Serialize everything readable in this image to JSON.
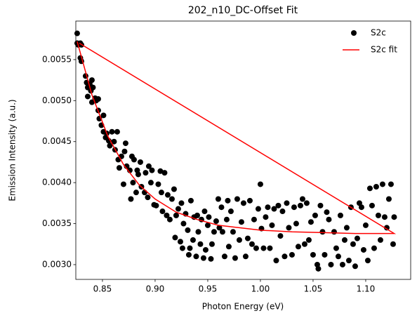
{
  "chart_data": {
    "type": "scatter",
    "title": "202_n10_DC-Offset Fit",
    "xlabel": "Photon Energy (eV)",
    "ylabel": "Emission Intensity (a.u.)",
    "xlim": [
      0.8247,
      1.1427
    ],
    "ylim": [
      0.00282,
      0.00597
    ],
    "xticks": [
      {
        "value": 0.85,
        "label": "0.85"
      },
      {
        "value": 0.9,
        "label": "0.90"
      },
      0.95,
      {
        "value": 1.0,
        "label": "1.00"
      },
      1.05,
      {
        "value": 1.1,
        "label": "1.10"
      }
    ],
    "yticks": [
      {
        "value": 0.003,
        "label": "0.0030"
      },
      0.0035,
      {
        "value": 0.004,
        "label": "0.0040"
      },
      0.0045,
      {
        "value": 0.005,
        "label": "0.0050"
      },
      0.0055
    ],
    "legend": "upper right",
    "series": [
      {
        "name": "S2c",
        "type": "scatter",
        "color": "#000000",
        "x": [
          0.826,
          0.826,
          0.827,
          0.829,
          0.83,
          0.829,
          0.83,
          0.834,
          0.835,
          0.836,
          0.836,
          0.838,
          0.839,
          0.84,
          0.84,
          0.841,
          0.843,
          0.844,
          0.846,
          0.846,
          0.847,
          0.849,
          0.851,
          0.851,
          0.853,
          0.854,
          0.856,
          0.857,
          0.859,
          0.861,
          0.862,
          0.864,
          0.865,
          0.866,
          0.868,
          0.87,
          0.871,
          0.872,
          0.873,
          0.876,
          0.877,
          0.878,
          0.879,
          0.88,
          0.882,
          0.883,
          0.884,
          0.886,
          0.887,
          0.89,
          0.891,
          0.893,
          0.894,
          0.896,
          0.897,
          0.899,
          0.901,
          0.903,
          0.905,
          0.906,
          0.907,
          0.909,
          0.911,
          0.912,
          0.914,
          0.916,
          0.918,
          0.919,
          0.92,
          0.922,
          0.924,
          0.925,
          0.926,
          0.927,
          0.929,
          0.931,
          0.932,
          0.933,
          0.934,
          0.936,
          0.937,
          0.939,
          0.94,
          0.941,
          0.943,
          0.944,
          0.946,
          0.947,
          0.948,
          0.95,
          0.951,
          0.953,
          0.954,
          0.956,
          0.958,
          0.96,
          0.961,
          0.963,
          0.964,
          0.966,
          0.968,
          0.969,
          0.97,
          0.972,
          0.974,
          0.976,
          0.978,
          0.98,
          0.982,
          0.984,
          0.986,
          0.988,
          0.99,
          0.992,
          0.994,
          0.996,
          0.998,
          1.0,
          1.001,
          1.003,
          1.005,
          1.007,
          1.009,
          1.011,
          1.013,
          1.015,
          1.017,
          1.019,
          1.021,
          1.023,
          1.025,
          1.027,
          1.03,
          1.032,
          1.034,
          1.036,
          1.038,
          1.04,
          1.042,
          1.044,
          1.046,
          1.048,
          1.05,
          1.052,
          1.054,
          1.055,
          1.057,
          1.059,
          1.061,
          1.063,
          1.065,
          1.067,
          1.07,
          1.072,
          1.074,
          1.076,
          1.078,
          1.08,
          1.082,
          1.084,
          1.086,
          1.088,
          1.09,
          1.092,
          1.094,
          1.096,
          1.098,
          1.1,
          1.102,
          1.104,
          1.106,
          1.108,
          1.11,
          1.112,
          1.114,
          1.116,
          1.118,
          1.12,
          1.122,
          1.124,
          1.126,
          1.127
        ],
        "values": [
          0.00582,
          0.0057,
          0.00568,
          0.0057,
          0.00568,
          0.00552,
          0.00548,
          0.0053,
          0.00522,
          0.00516,
          0.00505,
          0.0052,
          0.00512,
          0.00525,
          0.00498,
          0.00516,
          0.00503,
          0.005,
          0.00502,
          0.00488,
          0.00478,
          0.0047,
          0.00482,
          0.00462,
          0.00455,
          0.0046,
          0.00451,
          0.00445,
          0.00462,
          0.0045,
          0.0044,
          0.00462,
          0.00428,
          0.00418,
          0.00432,
          0.00398,
          0.00438,
          0.00448,
          0.0042,
          0.00415,
          0.0038,
          0.00432,
          0.004,
          0.00428,
          0.00388,
          0.00415,
          0.0041,
          0.00425,
          0.00395,
          0.00388,
          0.00412,
          0.00382,
          0.0042,
          0.004,
          0.00415,
          0.00373,
          0.00372,
          0.00398,
          0.00414,
          0.00388,
          0.00365,
          0.00412,
          0.0036,
          0.00385,
          0.00355,
          0.0038,
          0.00392,
          0.00333,
          0.0036,
          0.00368,
          0.00328,
          0.00375,
          0.0032,
          0.0035,
          0.00362,
          0.00342,
          0.00312,
          0.0032,
          0.00378,
          0.0033,
          0.00358,
          0.0031,
          0.0036,
          0.0034,
          0.00325,
          0.00355,
          0.00308,
          0.00365,
          0.00318,
          0.00348,
          0.00358,
          0.00307,
          0.00325,
          0.0034,
          0.00353,
          0.0038,
          0.00345,
          0.0037,
          0.0034,
          0.0031,
          0.00355,
          0.00378,
          0.00322,
          0.00365,
          0.0034,
          0.00308,
          0.0038,
          0.0033,
          0.00352,
          0.00375,
          0.0031,
          0.00332,
          0.00378,
          0.00325,
          0.00355,
          0.0032,
          0.00368,
          0.00398,
          0.00344,
          0.0032,
          0.00358,
          0.0037,
          0.0032,
          0.00348,
          0.00368,
          0.00305,
          0.00372,
          0.00335,
          0.00365,
          0.0031,
          0.00375,
          0.00345,
          0.00312,
          0.0037,
          0.0035,
          0.00322,
          0.00372,
          0.0038,
          0.00325,
          0.00375,
          0.0033,
          0.00352,
          0.00312,
          0.0036,
          0.003,
          0.00295,
          0.00372,
          0.0034,
          0.00312,
          0.00364,
          0.00355,
          0.003,
          0.0034,
          0.0032,
          0.0031,
          0.0036,
          0.003,
          0.0033,
          0.00345,
          0.00305,
          0.0037,
          0.00325,
          0.00298,
          0.00332,
          0.00375,
          0.0037,
          0.00318,
          0.00348,
          0.00305,
          0.00393,
          0.00372,
          0.0032,
          0.00395,
          0.0036,
          0.0033,
          0.00398,
          0.00358,
          0.00345,
          0.0038,
          0.00398,
          0.00325,
          0.00358
        ]
      },
      {
        "name": "S2c fit",
        "type": "line",
        "color": "#ff0000",
        "x": [
          0.826,
          0.84,
          0.855,
          0.87,
          0.885,
          0.9,
          0.92,
          0.94,
          0.96,
          0.98,
          1.0,
          1.03,
          1.06,
          1.09,
          1.127,
          0.828
        ],
        "values": [
          0.00572,
          0.00507,
          0.00457,
          0.00422,
          0.00397,
          0.0038,
          0.00364,
          0.00355,
          0.00348,
          0.00345,
          0.00342,
          0.0034,
          0.00339,
          0.00338,
          0.00338,
          0.0057
        ]
      }
    ]
  }
}
